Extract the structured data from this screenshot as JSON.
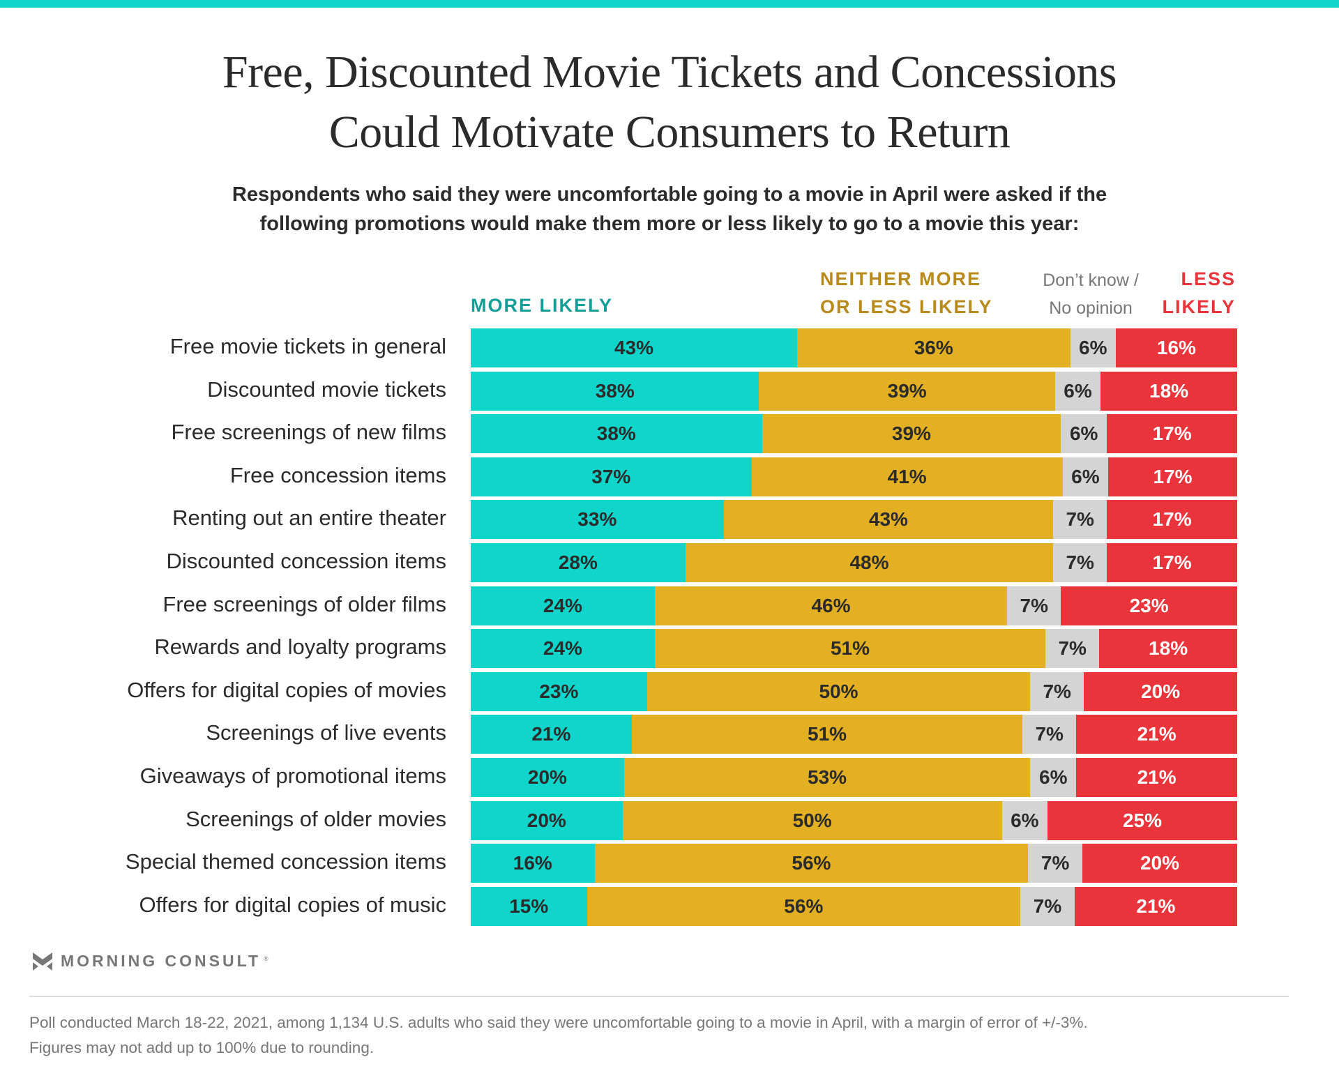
{
  "colors": {
    "accent_top": "#10d5cb",
    "more_likely": "#10d5cb",
    "neither": "#e2b022",
    "dont_know": "#d4d4d4",
    "less_likely": "#e8343a",
    "more_likely_text": "#139e98",
    "neither_text": "#b8891b",
    "dont_know_text": "#777777",
    "less_likely_text": "#e8343a"
  },
  "header": {
    "title_line1": "Free, Discounted Movie Tickets and Concessions",
    "title_line2": "Could Motivate Consumers to Return",
    "subtitle_line1": "Respondents who said they were uncomfortable going to a movie in April were asked if the",
    "subtitle_line2": "following promotions would make them more or less likely to go to a movie this year:"
  },
  "legend": {
    "more_likely": "MORE LIKELY",
    "neither_line1": "NEITHER MORE",
    "neither_line2": "OR LESS LIKELY",
    "dont_know_line1": "Don’t know /",
    "dont_know_line2": "No opinion",
    "less_line1": "LESS",
    "less_line2": "LIKELY"
  },
  "chart_data": {
    "type": "bar",
    "orientation": "horizontal-stacked-100",
    "title": "Free, Discounted Movie Tickets and Concessions Could Motivate Consumers to Return",
    "subtitle": "Respondents who said they were uncomfortable going to a movie in April were asked if the following promotions would make them more or less likely to go to a movie this year:",
    "xlabel": "",
    "ylabel": "",
    "legend_position": "top",
    "grid": false,
    "categories": [
      "Free movie tickets in general",
      "Discounted movie tickets",
      "Free screenings of new films",
      "Free concession items",
      "Renting out an entire theater",
      "Discounted concession items",
      "Free screenings of older films",
      "Rewards and loyalty programs",
      "Offers for digital copies of movies",
      "Screenings of live events",
      "Giveaways of promotional items",
      "Screenings of older movies",
      "Special themed concession items",
      "Offers for digital copies of music"
    ],
    "series": [
      {
        "name": "More likely",
        "values": [
          43,
          38,
          38,
          37,
          33,
          28,
          24,
          24,
          23,
          21,
          20,
          20,
          16,
          15
        ]
      },
      {
        "name": "Neither more or less likely",
        "values": [
          36,
          39,
          39,
          41,
          43,
          48,
          46,
          51,
          50,
          51,
          53,
          50,
          56,
          56
        ]
      },
      {
        "name": "Don't know / No opinion",
        "values": [
          6,
          6,
          6,
          6,
          7,
          7,
          7,
          7,
          7,
          7,
          6,
          6,
          7,
          7
        ]
      },
      {
        "name": "Less likely",
        "values": [
          16,
          18,
          17,
          17,
          17,
          17,
          23,
          18,
          20,
          21,
          21,
          25,
          20,
          21
        ]
      }
    ],
    "value_suffix": "%"
  },
  "footer": {
    "brand": "MORNING CONSULT",
    "registered": "®",
    "note_line1": "Poll conducted March 18-22, 2021, among 1,134 U.S. adults who said they were uncomfortable going to a movie in April, with a margin of error of +/-3%.",
    "note_line2": "Figures may not add up to 100% due to rounding."
  }
}
